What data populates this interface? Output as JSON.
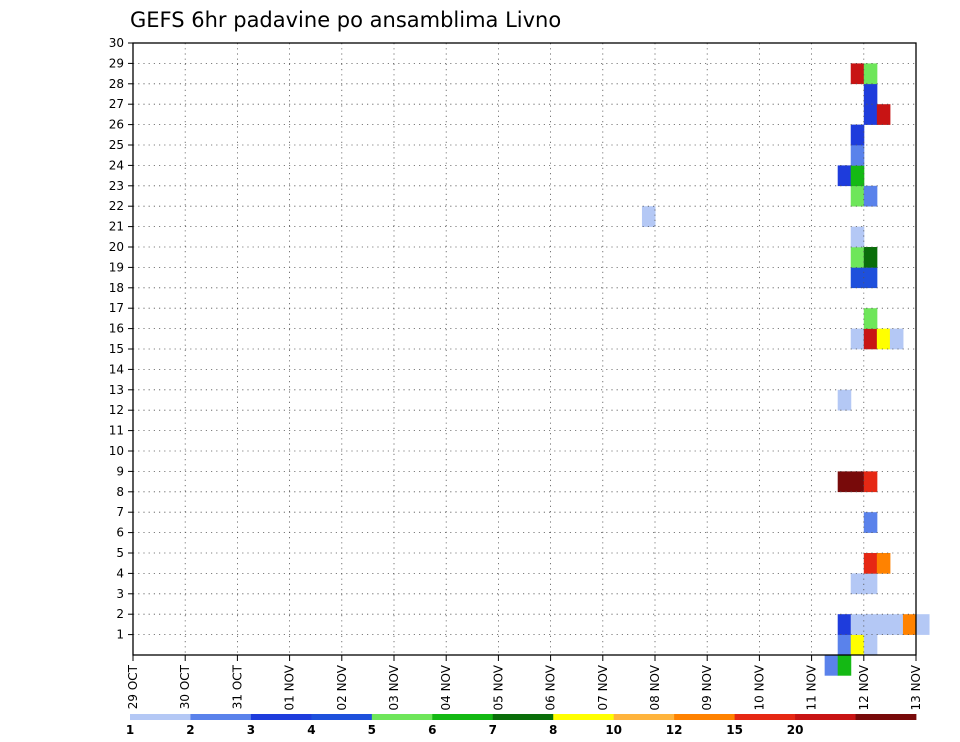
{
  "chart_data": {
    "type": "heatmap",
    "title": "GEFS 6hr padavine po ansamblima Livno",
    "x_ticks": [
      "29 OCT",
      "30 OCT",
      "31 OCT",
      "01 NOV",
      "02 NOV",
      "03 NOV",
      "04 NOV",
      "05 NOV",
      "06 NOV",
      "07 NOV",
      "08 NOV",
      "09 NOV",
      "10 NOV",
      "11 NOV",
      "12 NOV",
      "13 NOV"
    ],
    "y_ticks": [
      "1",
      "2",
      "3",
      "4",
      "5",
      "6",
      "7",
      "8",
      "9",
      "10",
      "11",
      "12",
      "13",
      "14",
      "15",
      "16",
      "17",
      "18",
      "19",
      "20",
      "21",
      "22",
      "23",
      "24",
      "25",
      "26",
      "27",
      "28",
      "29",
      "30"
    ],
    "grid": true,
    "legend_position": "bottom",
    "legend_labels": [
      "1",
      "2",
      "3",
      "4",
      "5",
      "6",
      "7",
      "8",
      "10",
      "12",
      "15",
      "20"
    ],
    "legend_colors": [
      "#b4c8f5",
      "#5a82eb",
      "#1e3cdc",
      "#1e50dc",
      "#6ee65a",
      "#14b914",
      "#0a6e0a",
      "#ffff00",
      "#ffb43c",
      "#ff8200",
      "#e62814",
      "#c81414",
      "#780a0a"
    ],
    "x_unit": "6h steps from 29 OCT 00Z",
    "cells": [
      [
        1,
        54,
        1
      ],
      [
        1,
        55,
        7
      ],
      [
        1,
        56,
        0
      ],
      [
        1,
        94,
        4
      ],
      [
        1,
        95,
        9
      ],
      [
        1,
        96,
        9
      ],
      [
        1,
        97,
        0
      ],
      [
        1,
        102,
        0
      ],
      [
        1,
        103,
        7
      ],
      [
        1,
        104,
        2
      ],
      [
        1,
        105,
        1
      ],
      [
        2,
        54,
        2
      ],
      [
        2,
        55,
        0
      ],
      [
        2,
        56,
        0
      ],
      [
        2,
        57,
        0
      ],
      [
        2,
        58,
        0
      ],
      [
        2,
        59,
        9
      ],
      [
        2,
        60,
        0
      ],
      [
        3,
        66,
        1
      ],
      [
        3,
        67,
        1
      ],
      [
        3,
        70,
        0
      ],
      [
        3,
        71,
        1
      ],
      [
        3,
        92,
        1
      ],
      [
        3,
        93,
        4
      ],
      [
        3,
        94,
        5
      ],
      [
        3,
        95,
        4
      ],
      [
        3,
        108,
        6
      ],
      [
        3,
        109,
        6
      ],
      [
        4,
        55,
        0
      ],
      [
        4,
        56,
        0
      ],
      [
        4,
        65,
        5
      ],
      [
        5,
        56,
        10
      ],
      [
        5,
        57,
        9
      ],
      [
        6,
        83,
        0
      ],
      [
        6,
        84,
        5
      ],
      [
        6,
        85,
        4
      ],
      [
        6,
        86,
        7
      ],
      [
        6,
        87,
        4
      ],
      [
        6,
        88,
        2
      ],
      [
        6,
        89,
        1
      ],
      [
        6,
        90,
        0
      ],
      [
        6,
        91,
        2
      ],
      [
        6,
        92,
        1
      ],
      [
        6,
        96,
        5
      ],
      [
        7,
        56,
        1
      ],
      [
        7,
        95,
        10
      ],
      [
        7,
        96,
        9
      ],
      [
        7,
        97,
        4
      ],
      [
        7,
        98,
        0
      ],
      [
        7,
        99,
        0
      ],
      [
        7,
        100,
        0
      ],
      [
        7,
        101,
        0
      ],
      [
        7,
        102,
        0
      ],
      [
        7,
        105,
        0
      ],
      [
        7,
        106,
        6
      ],
      [
        8,
        68,
        0
      ],
      [
        8,
        69,
        9
      ],
      [
        8,
        70,
        12
      ],
      [
        8,
        71,
        6
      ],
      [
        8,
        102,
        1
      ],
      [
        8,
        103,
        2
      ],
      [
        9,
        54,
        12
      ],
      [
        9,
        55,
        12
      ],
      [
        9,
        56,
        10
      ],
      [
        10,
        76,
        4
      ],
      [
        10,
        87,
        5
      ],
      [
        10,
        88,
        2
      ],
      [
        10,
        89,
        9
      ],
      [
        10,
        90,
        0
      ],
      [
        10,
        101,
        9
      ],
      [
        10,
        102,
        1
      ],
      [
        10,
        103,
        5
      ],
      [
        10,
        104,
        2
      ],
      [
        11,
        75,
        2
      ],
      [
        11,
        76,
        11
      ],
      [
        11,
        87,
        0
      ],
      [
        11,
        88,
        7
      ],
      [
        11,
        89,
        2
      ],
      [
        11,
        90,
        6
      ],
      [
        11,
        91,
        7
      ],
      [
        11,
        92,
        0
      ],
      [
        12,
        87,
        0
      ],
      [
        12,
        88,
        0
      ],
      [
        12,
        89,
        0
      ],
      [
        12,
        90,
        0
      ],
      [
        12,
        91,
        0
      ],
      [
        13,
        54,
        0
      ],
      [
        13,
        87,
        0
      ],
      [
        13,
        88,
        0
      ],
      [
        15,
        74,
        2
      ],
      [
        15,
        106,
        1
      ],
      [
        15,
        107,
        11
      ],
      [
        16,
        55,
        0
      ],
      [
        16,
        56,
        11
      ],
      [
        16,
        57,
        7
      ],
      [
        16,
        58,
        0
      ],
      [
        17,
        56,
        4
      ],
      [
        17,
        104,
        0
      ],
      [
        18,
        74,
        0
      ],
      [
        18,
        75,
        9
      ],
      [
        18,
        76,
        1
      ],
      [
        18,
        103,
        0
      ],
      [
        19,
        55,
        3
      ],
      [
        19,
        56,
        3
      ],
      [
        20,
        55,
        4
      ],
      [
        20,
        56,
        6
      ],
      [
        20,
        72,
        0
      ],
      [
        20,
        73,
        9
      ],
      [
        20,
        74,
        1
      ],
      [
        21,
        55,
        0
      ],
      [
        21,
        76,
        2
      ],
      [
        21,
        77,
        7
      ],
      [
        22,
        39,
        0
      ],
      [
        22,
        67,
        0
      ],
      [
        22,
        68,
        1
      ],
      [
        22,
        78,
        0
      ],
      [
        22,
        82,
        5
      ],
      [
        22,
        83,
        10
      ],
      [
        23,
        55,
        4
      ],
      [
        23,
        56,
        1
      ],
      [
        23,
        106,
        6
      ],
      [
        23,
        107,
        11
      ],
      [
        23,
        108,
        10
      ],
      [
        24,
        54,
        2
      ],
      [
        24,
        55,
        5
      ],
      [
        24,
        76,
        0
      ],
      [
        24,
        77,
        1
      ],
      [
        24,
        78,
        1
      ],
      [
        24,
        106,
        5
      ],
      [
        24,
        107,
        1
      ],
      [
        25,
        55,
        1
      ],
      [
        25,
        104,
        0
      ],
      [
        26,
        55,
        2
      ],
      [
        27,
        56,
        2
      ],
      [
        27,
        57,
        11
      ],
      [
        27,
        74,
        0
      ],
      [
        27,
        75,
        7
      ],
      [
        27,
        76,
        11
      ],
      [
        28,
        56,
        2
      ],
      [
        28,
        93,
        11
      ],
      [
        28,
        94,
        4
      ],
      [
        28,
        96,
        0
      ],
      [
        28,
        97,
        0
      ],
      [
        28,
        98,
        0
      ],
      [
        28,
        99,
        4
      ],
      [
        28,
        100,
        10
      ],
      [
        29,
        55,
        11
      ],
      [
        29,
        56,
        4
      ],
      [
        29,
        101,
        0
      ],
      [
        30,
        75,
        0
      ],
      [
        30,
        76,
        6
      ],
      [
        30,
        80,
        2
      ],
      [
        30,
        82,
        0
      ],
      [
        30,
        83,
        1
      ],
      [
        30,
        84,
        4
      ],
      [
        30,
        106,
        10
      ],
      [
        0,
        53,
        1
      ],
      [
        0,
        54,
        5
      ],
      [
        0,
        94,
        0
      ]
    ]
  }
}
